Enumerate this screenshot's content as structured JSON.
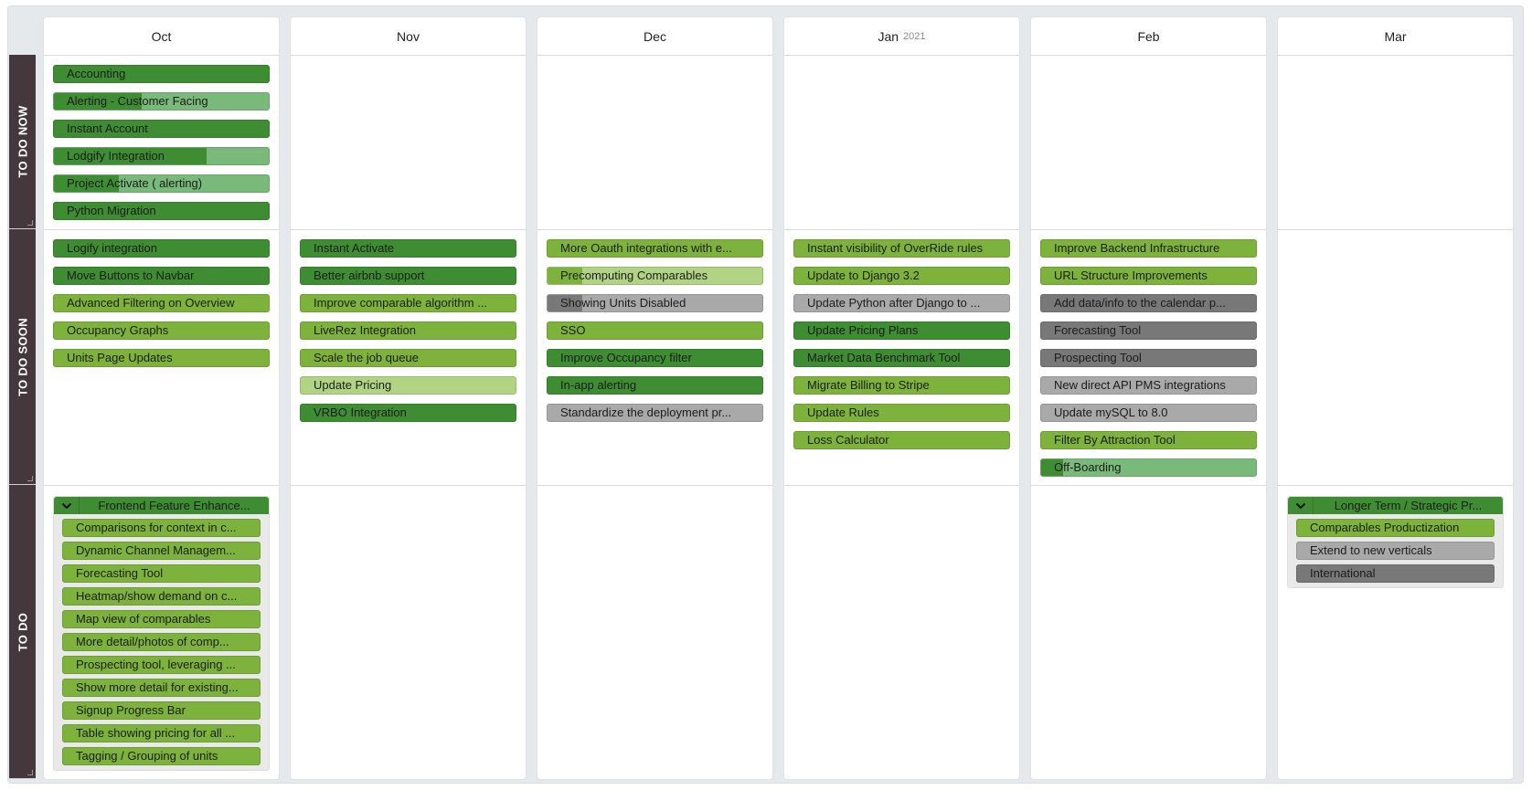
{
  "palette": {
    "dark_green": "#3f8d33",
    "green": "#7db33c",
    "pale_green": "#b1d384",
    "gray": "#a9a9a9",
    "dark_gray": "#787878",
    "progress_green": "#79b97a",
    "row_label_bg": "#45383d"
  },
  "columns": [
    {
      "label": "Oct"
    },
    {
      "label": "Nov"
    },
    {
      "label": "Dec"
    },
    {
      "label": "Jan",
      "year": "2021"
    },
    {
      "label": "Feb"
    },
    {
      "label": "Mar"
    }
  ],
  "rows": [
    {
      "label": "TO DO NOW",
      "cells": [
        [
          {
            "title": "Accounting",
            "color": "dark_green"
          },
          {
            "title": "Alerting - Customer Facing",
            "color": "progress_green",
            "progress_color": "dark_green",
            "progress": 0.41
          },
          {
            "title": "Instant Account",
            "color": "dark_green"
          },
          {
            "title": "Lodgify Integration",
            "color": "progress_green",
            "progress_color": "dark_green",
            "progress": 0.71
          },
          {
            "title": "Project Activate ( alerting)",
            "color": "progress_green",
            "progress_color": "dark_green",
            "progress": 0.3
          },
          {
            "title": "Python Migration",
            "color": "dark_green"
          }
        ],
        [],
        [],
        [],
        [],
        []
      ]
    },
    {
      "label": "TO DO SOON",
      "cells": [
        [
          {
            "title": "Logify integration",
            "color": "dark_green"
          },
          {
            "title": "Move Buttons to Navbar",
            "color": "dark_green"
          },
          {
            "title": "Advanced Filtering on Overview",
            "color": "green"
          },
          {
            "title": "Occupancy Graphs",
            "color": "green"
          },
          {
            "title": "Units Page Updates",
            "color": "green"
          }
        ],
        [
          {
            "title": "Instant Activate",
            "color": "dark_green"
          },
          {
            "title": "Better airbnb support",
            "color": "dark_green"
          },
          {
            "title": "Improve comparable algorithm ...",
            "color": "green"
          },
          {
            "title": "LiveRez Integration",
            "color": "green"
          },
          {
            "title": "Scale the job queue",
            "color": "green"
          },
          {
            "title": "Update Pricing",
            "color": "pale_green"
          },
          {
            "title": "VRBO Integration",
            "color": "dark_green"
          }
        ],
        [
          {
            "title": "More Oauth integrations with e...",
            "color": "green"
          },
          {
            "title": "Precomputing Comparables",
            "color": "pale_green",
            "progress_color": "green",
            "progress": 0.16
          },
          {
            "title": "Showing Units Disabled",
            "color": "gray",
            "progress_color": "dark_gray",
            "progress": 0.16
          },
          {
            "title": "SSO",
            "color": "green"
          },
          {
            "title": "Improve Occupancy filter",
            "color": "dark_green"
          },
          {
            "title": "In-app alerting",
            "color": "dark_green"
          },
          {
            "title": "Standardize the deployment pr...",
            "color": "gray"
          }
        ],
        [
          {
            "title": "Instant visibility of OverRide rules",
            "color": "green"
          },
          {
            "title": "Update to Django 3.2",
            "color": "green"
          },
          {
            "title": "Update Python after Django to ...",
            "color": "gray"
          },
          {
            "title": "Update Pricing Plans",
            "color": "dark_green"
          },
          {
            "title": "Market Data Benchmark Tool",
            "color": "dark_green"
          },
          {
            "title": "Migrate Billing to Stripe",
            "color": "green"
          },
          {
            "title": "Update Rules",
            "color": "green"
          },
          {
            "title": "Loss Calculator",
            "color": "green"
          }
        ],
        [
          {
            "title": "Improve Backend Infrastructure",
            "color": "green"
          },
          {
            "title": "URL Structure Improvements",
            "color": "green"
          },
          {
            "title": "Add data/info to the calendar p...",
            "color": "dark_gray"
          },
          {
            "title": "Forecasting Tool",
            "color": "dark_gray"
          },
          {
            "title": "Prospecting Tool",
            "color": "dark_gray"
          },
          {
            "title": "New direct API PMS integrations",
            "color": "gray"
          },
          {
            "title": "Update mySQL to 8.0",
            "color": "gray"
          },
          {
            "title": "Filter By Attraction Tool",
            "color": "green"
          },
          {
            "title": "Off-Boarding",
            "color": "progress_green",
            "progress_color": "dark_green",
            "progress": 0.1
          }
        ],
        []
      ]
    },
    {
      "label": "TO DO",
      "cells": [
        [
          {
            "type": "group",
            "title": "Frontend Feature Enhance...",
            "expanded": true,
            "items": [
              {
                "title": "Comparisons for context in c...",
                "color": "green"
              },
              {
                "title": "Dynamic Channel Managem...",
                "color": "green"
              },
              {
                "title": "Forecasting Tool",
                "color": "green"
              },
              {
                "title": "Heatmap/show demand on c...",
                "color": "green"
              },
              {
                "title": "Map view of comparables",
                "color": "green"
              },
              {
                "title": "More detail/photos of comp...",
                "color": "green"
              },
              {
                "title": "Prospecting tool, leveraging ...",
                "color": "green"
              },
              {
                "title": "Show more detail for existing...",
                "color": "green"
              },
              {
                "title": "Signup Progress Bar",
                "color": "green"
              },
              {
                "title": "Table showing pricing for all ...",
                "color": "green"
              },
              {
                "title": "Tagging / Grouping of units",
                "color": "green"
              }
            ]
          }
        ],
        [],
        [],
        [],
        [],
        [
          {
            "type": "group",
            "title": "Longer Term / Strategic Pr...",
            "expanded": true,
            "items": [
              {
                "title": "Comparables Productization",
                "color": "green"
              },
              {
                "title": "Extend to new verticals",
                "color": "gray"
              },
              {
                "title": "International",
                "color": "dark_gray"
              }
            ]
          }
        ]
      ]
    }
  ]
}
